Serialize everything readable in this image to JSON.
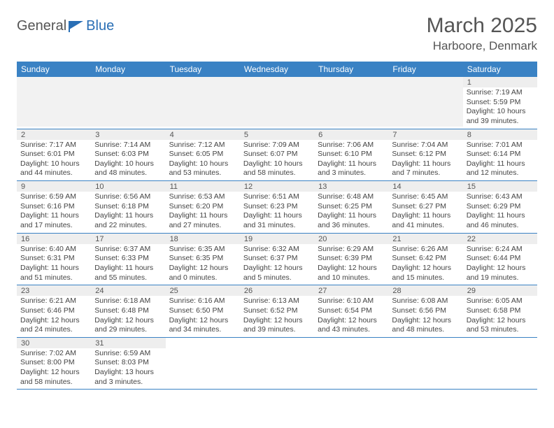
{
  "brand": {
    "part1": "General",
    "part2": "Blue"
  },
  "title": "March 2025",
  "location": "Harboore, Denmark",
  "colors": {
    "header_bg": "#3a82c4",
    "header_text": "#ffffff",
    "grid_border": "#3a82c4",
    "daynum_bg": "#eeeeee",
    "empty_bg": "#f2f2f2",
    "text": "#444444",
    "brand_blue": "#2a6fb5"
  },
  "weekdays": [
    "Sunday",
    "Monday",
    "Tuesday",
    "Wednesday",
    "Thursday",
    "Friday",
    "Saturday"
  ],
  "weeks": [
    [
      null,
      null,
      null,
      null,
      null,
      null,
      {
        "n": "1",
        "sunrise": "7:19 AM",
        "sunset": "5:59 PM",
        "daylight": "10 hours and 39 minutes."
      }
    ],
    [
      {
        "n": "2",
        "sunrise": "7:17 AM",
        "sunset": "6:01 PM",
        "daylight": "10 hours and 44 minutes."
      },
      {
        "n": "3",
        "sunrise": "7:14 AM",
        "sunset": "6:03 PM",
        "daylight": "10 hours and 48 minutes."
      },
      {
        "n": "4",
        "sunrise": "7:12 AM",
        "sunset": "6:05 PM",
        "daylight": "10 hours and 53 minutes."
      },
      {
        "n": "5",
        "sunrise": "7:09 AM",
        "sunset": "6:07 PM",
        "daylight": "10 hours and 58 minutes."
      },
      {
        "n": "6",
        "sunrise": "7:06 AM",
        "sunset": "6:10 PM",
        "daylight": "11 hours and 3 minutes."
      },
      {
        "n": "7",
        "sunrise": "7:04 AM",
        "sunset": "6:12 PM",
        "daylight": "11 hours and 7 minutes."
      },
      {
        "n": "8",
        "sunrise": "7:01 AM",
        "sunset": "6:14 PM",
        "daylight": "11 hours and 12 minutes."
      }
    ],
    [
      {
        "n": "9",
        "sunrise": "6:59 AM",
        "sunset": "6:16 PM",
        "daylight": "11 hours and 17 minutes."
      },
      {
        "n": "10",
        "sunrise": "6:56 AM",
        "sunset": "6:18 PM",
        "daylight": "11 hours and 22 minutes."
      },
      {
        "n": "11",
        "sunrise": "6:53 AM",
        "sunset": "6:20 PM",
        "daylight": "11 hours and 27 minutes."
      },
      {
        "n": "12",
        "sunrise": "6:51 AM",
        "sunset": "6:23 PM",
        "daylight": "11 hours and 31 minutes."
      },
      {
        "n": "13",
        "sunrise": "6:48 AM",
        "sunset": "6:25 PM",
        "daylight": "11 hours and 36 minutes."
      },
      {
        "n": "14",
        "sunrise": "6:45 AM",
        "sunset": "6:27 PM",
        "daylight": "11 hours and 41 minutes."
      },
      {
        "n": "15",
        "sunrise": "6:43 AM",
        "sunset": "6:29 PM",
        "daylight": "11 hours and 46 minutes."
      }
    ],
    [
      {
        "n": "16",
        "sunrise": "6:40 AM",
        "sunset": "6:31 PM",
        "daylight": "11 hours and 51 minutes."
      },
      {
        "n": "17",
        "sunrise": "6:37 AM",
        "sunset": "6:33 PM",
        "daylight": "11 hours and 55 minutes."
      },
      {
        "n": "18",
        "sunrise": "6:35 AM",
        "sunset": "6:35 PM",
        "daylight": "12 hours and 0 minutes."
      },
      {
        "n": "19",
        "sunrise": "6:32 AM",
        "sunset": "6:37 PM",
        "daylight": "12 hours and 5 minutes."
      },
      {
        "n": "20",
        "sunrise": "6:29 AM",
        "sunset": "6:39 PM",
        "daylight": "12 hours and 10 minutes."
      },
      {
        "n": "21",
        "sunrise": "6:26 AM",
        "sunset": "6:42 PM",
        "daylight": "12 hours and 15 minutes."
      },
      {
        "n": "22",
        "sunrise": "6:24 AM",
        "sunset": "6:44 PM",
        "daylight": "12 hours and 19 minutes."
      }
    ],
    [
      {
        "n": "23",
        "sunrise": "6:21 AM",
        "sunset": "6:46 PM",
        "daylight": "12 hours and 24 minutes."
      },
      {
        "n": "24",
        "sunrise": "6:18 AM",
        "sunset": "6:48 PM",
        "daylight": "12 hours and 29 minutes."
      },
      {
        "n": "25",
        "sunrise": "6:16 AM",
        "sunset": "6:50 PM",
        "daylight": "12 hours and 34 minutes."
      },
      {
        "n": "26",
        "sunrise": "6:13 AM",
        "sunset": "6:52 PM",
        "daylight": "12 hours and 39 minutes."
      },
      {
        "n": "27",
        "sunrise": "6:10 AM",
        "sunset": "6:54 PM",
        "daylight": "12 hours and 43 minutes."
      },
      {
        "n": "28",
        "sunrise": "6:08 AM",
        "sunset": "6:56 PM",
        "daylight": "12 hours and 48 minutes."
      },
      {
        "n": "29",
        "sunrise": "6:05 AM",
        "sunset": "6:58 PM",
        "daylight": "12 hours and 53 minutes."
      }
    ],
    [
      {
        "n": "30",
        "sunrise": "7:02 AM",
        "sunset": "8:00 PM",
        "daylight": "12 hours and 58 minutes."
      },
      {
        "n": "31",
        "sunrise": "6:59 AM",
        "sunset": "8:03 PM",
        "daylight": "13 hours and 3 minutes."
      },
      null,
      null,
      null,
      null,
      null
    ]
  ],
  "labels": {
    "sunrise_prefix": "Sunrise: ",
    "sunset_prefix": "Sunset: ",
    "daylight_prefix": "Daylight: "
  }
}
